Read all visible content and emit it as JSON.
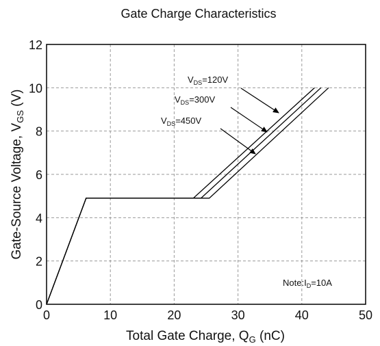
{
  "chart_data": {
    "type": "line",
    "title": "Gate Charge Characteristics",
    "xlabel": {
      "main": "Total Gate Charge, Q",
      "sub": "G",
      "tail": " (nC)"
    },
    "ylabel": {
      "main": "Gate-Source Voltage, V",
      "sub": "GS",
      "tail": " (V)"
    },
    "xlim": [
      0,
      50
    ],
    "ylim": [
      0,
      12
    ],
    "x_ticks": [
      "0",
      "10",
      "20",
      "30",
      "40",
      "50"
    ],
    "y_ticks": [
      "0",
      "2",
      "4",
      "6",
      "8",
      "10",
      "12"
    ],
    "grid": true,
    "series": [
      {
        "name": "V_DS=120V",
        "points": [
          [
            0,
            0
          ],
          [
            6.2,
            4.9
          ],
          [
            23.0,
            4.9
          ],
          [
            42.0,
            10.0
          ]
        ]
      },
      {
        "name": "V_DS=300V",
        "points": [
          [
            0,
            0
          ],
          [
            6.2,
            4.9
          ],
          [
            24.2,
            4.9
          ],
          [
            43.0,
            10.0
          ]
        ]
      },
      {
        "name": "V_DS=450V",
        "points": [
          [
            0,
            0
          ],
          [
            6.2,
            4.9
          ],
          [
            25.5,
            4.9
          ],
          [
            44.2,
            10.0
          ]
        ]
      }
    ],
    "series_labels": [
      {
        "prefix": "V",
        "sub": "DS",
        "suffix": "=120V"
      },
      {
        "prefix": "V",
        "sub": "DS",
        "suffix": "=300V"
      },
      {
        "prefix": "V",
        "sub": "DS",
        "suffix": "=450V"
      }
    ],
    "note": {
      "prefix": "Note:I",
      "sub": "D",
      "suffix": "=10A"
    }
  }
}
